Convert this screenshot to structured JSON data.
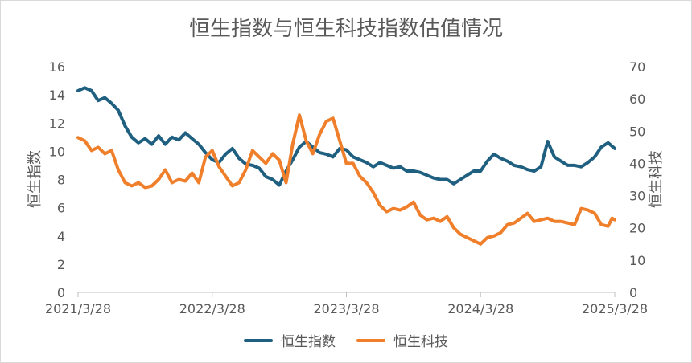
{
  "chart_data": {
    "type": "line",
    "title": "恒生指数与恒生科技指数估值情况",
    "ylabel_left": "恒生指数",
    "ylabel_right": "恒生科技",
    "ylim_left": [
      0,
      16
    ],
    "ylim_right": [
      0,
      70
    ],
    "yticks_left": [
      "0",
      "2",
      "4",
      "6",
      "8",
      "10",
      "12",
      "14",
      "16"
    ],
    "yticks_right": [
      "0",
      "10",
      "20",
      "30",
      "40",
      "50",
      "60",
      "70"
    ],
    "x_ticks": [
      "2021/3/28",
      "2022/3/28",
      "2023/3/28",
      "2024/3/28",
      "2025/3/28"
    ],
    "x_range_years": [
      0,
      4
    ],
    "legend_position": "bottom",
    "series": [
      {
        "name": "恒生指数",
        "axis": "left",
        "color": "#1f5f80",
        "points": [
          [
            0.0,
            14.3
          ],
          [
            0.05,
            14.5
          ],
          [
            0.1,
            14.3
          ],
          [
            0.15,
            13.6
          ],
          [
            0.2,
            13.8
          ],
          [
            0.25,
            13.4
          ],
          [
            0.3,
            12.9
          ],
          [
            0.35,
            11.8
          ],
          [
            0.4,
            11.0
          ],
          [
            0.45,
            10.6
          ],
          [
            0.5,
            10.9
          ],
          [
            0.55,
            10.5
          ],
          [
            0.6,
            11.1
          ],
          [
            0.65,
            10.5
          ],
          [
            0.7,
            11.0
          ],
          [
            0.75,
            10.8
          ],
          [
            0.8,
            11.3
          ],
          [
            0.85,
            10.9
          ],
          [
            0.9,
            10.5
          ],
          [
            0.95,
            9.9
          ],
          [
            1.0,
            9.4
          ],
          [
            1.05,
            9.2
          ],
          [
            1.1,
            9.8
          ],
          [
            1.15,
            10.2
          ],
          [
            1.2,
            9.5
          ],
          [
            1.25,
            9.1
          ],
          [
            1.3,
            9.0
          ],
          [
            1.35,
            8.8
          ],
          [
            1.4,
            8.2
          ],
          [
            1.45,
            8.0
          ],
          [
            1.5,
            7.6
          ],
          [
            1.55,
            8.6
          ],
          [
            1.6,
            9.4
          ],
          [
            1.65,
            10.3
          ],
          [
            1.7,
            10.7
          ],
          [
            1.75,
            10.3
          ],
          [
            1.8,
            9.9
          ],
          [
            1.85,
            9.8
          ],
          [
            1.9,
            9.6
          ],
          [
            1.95,
            10.2
          ],
          [
            2.0,
            10.1
          ],
          [
            2.05,
            9.6
          ],
          [
            2.1,
            9.4
          ],
          [
            2.15,
            9.2
          ],
          [
            2.2,
            8.9
          ],
          [
            2.25,
            9.2
          ],
          [
            2.3,
            9.0
          ],
          [
            2.35,
            8.8
          ],
          [
            2.4,
            8.9
          ],
          [
            2.45,
            8.6
          ],
          [
            2.5,
            8.6
          ],
          [
            2.55,
            8.5
          ],
          [
            2.6,
            8.3
          ],
          [
            2.65,
            8.1
          ],
          [
            2.7,
            8.0
          ],
          [
            2.75,
            8.0
          ],
          [
            2.8,
            7.7
          ],
          [
            2.85,
            8.0
          ],
          [
            2.9,
            8.3
          ],
          [
            2.95,
            8.6
          ],
          [
            3.0,
            8.6
          ],
          [
            3.05,
            9.3
          ],
          [
            3.1,
            9.8
          ],
          [
            3.15,
            9.5
          ],
          [
            3.2,
            9.3
          ],
          [
            3.25,
            9.0
          ],
          [
            3.3,
            8.9
          ],
          [
            3.35,
            8.7
          ],
          [
            3.4,
            8.6
          ],
          [
            3.45,
            8.9
          ],
          [
            3.5,
            10.7
          ],
          [
            3.55,
            9.6
          ],
          [
            3.6,
            9.3
          ],
          [
            3.65,
            9.0
          ],
          [
            3.7,
            9.0
          ],
          [
            3.75,
            8.9
          ],
          [
            3.8,
            9.2
          ],
          [
            3.85,
            9.6
          ],
          [
            3.9,
            10.3
          ],
          [
            3.95,
            10.6
          ],
          [
            4.0,
            10.2
          ]
        ]
      },
      {
        "name": "恒生科技",
        "axis": "right",
        "color": "#f07f2b",
        "points": [
          [
            0.0,
            48.0
          ],
          [
            0.05,
            47.0
          ],
          [
            0.1,
            44.0
          ],
          [
            0.15,
            45.0
          ],
          [
            0.2,
            43.0
          ],
          [
            0.25,
            44.0
          ],
          [
            0.3,
            38.0
          ],
          [
            0.35,
            34.0
          ],
          [
            0.4,
            33.0
          ],
          [
            0.45,
            34.0
          ],
          [
            0.5,
            32.5
          ],
          [
            0.55,
            33.0
          ],
          [
            0.6,
            35.0
          ],
          [
            0.65,
            38.0
          ],
          [
            0.7,
            34.0
          ],
          [
            0.75,
            35.0
          ],
          [
            0.8,
            34.5
          ],
          [
            0.85,
            37.0
          ],
          [
            0.9,
            34.0
          ],
          [
            0.95,
            42.0
          ],
          [
            1.0,
            44.0
          ],
          [
            1.05,
            39.0
          ],
          [
            1.1,
            36.0
          ],
          [
            1.15,
            33.0
          ],
          [
            1.2,
            34.0
          ],
          [
            1.25,
            38.0
          ],
          [
            1.3,
            44.0
          ],
          [
            1.35,
            42.0
          ],
          [
            1.4,
            40.0
          ],
          [
            1.45,
            43.0
          ],
          [
            1.5,
            41.0
          ],
          [
            1.55,
            34.0
          ],
          [
            1.6,
            46.0
          ],
          [
            1.65,
            55.0
          ],
          [
            1.7,
            47.0
          ],
          [
            1.75,
            43.0
          ],
          [
            1.8,
            49.0
          ],
          [
            1.85,
            53.0
          ],
          [
            1.9,
            54.0
          ],
          [
            1.95,
            47.0
          ],
          [
            2.0,
            40.0
          ],
          [
            2.05,
            40.0
          ],
          [
            2.1,
            36.0
          ],
          [
            2.15,
            34.0
          ],
          [
            2.2,
            31.0
          ],
          [
            2.25,
            27.0
          ],
          [
            2.3,
            25.0
          ],
          [
            2.35,
            26.0
          ],
          [
            2.4,
            25.5
          ],
          [
            2.45,
            26.5
          ],
          [
            2.5,
            28.0
          ],
          [
            2.55,
            24.0
          ],
          [
            2.6,
            22.5
          ],
          [
            2.65,
            23.0
          ],
          [
            2.7,
            22.0
          ],
          [
            2.75,
            23.5
          ],
          [
            2.8,
            20.0
          ],
          [
            2.85,
            18.0
          ],
          [
            2.9,
            17.0
          ],
          [
            2.95,
            16.0
          ],
          [
            3.0,
            15.0
          ],
          [
            3.05,
            17.0
          ],
          [
            3.1,
            17.5
          ],
          [
            3.15,
            18.5
          ],
          [
            3.2,
            21.0
          ],
          [
            3.25,
            21.5
          ],
          [
            3.3,
            23.0
          ],
          [
            3.35,
            24.5
          ],
          [
            3.4,
            22.0
          ],
          [
            3.45,
            22.5
          ],
          [
            3.5,
            23.0
          ],
          [
            3.55,
            22.0
          ],
          [
            3.6,
            22.0
          ],
          [
            3.65,
            21.5
          ],
          [
            3.7,
            21.0
          ],
          [
            3.75,
            26.0
          ],
          [
            3.8,
            25.5
          ],
          [
            3.85,
            24.5
          ],
          [
            3.9,
            21.0
          ],
          [
            3.95,
            20.5
          ],
          [
            3.98,
            23.0
          ],
          [
            4.0,
            22.5
          ]
        ]
      }
    ]
  }
}
